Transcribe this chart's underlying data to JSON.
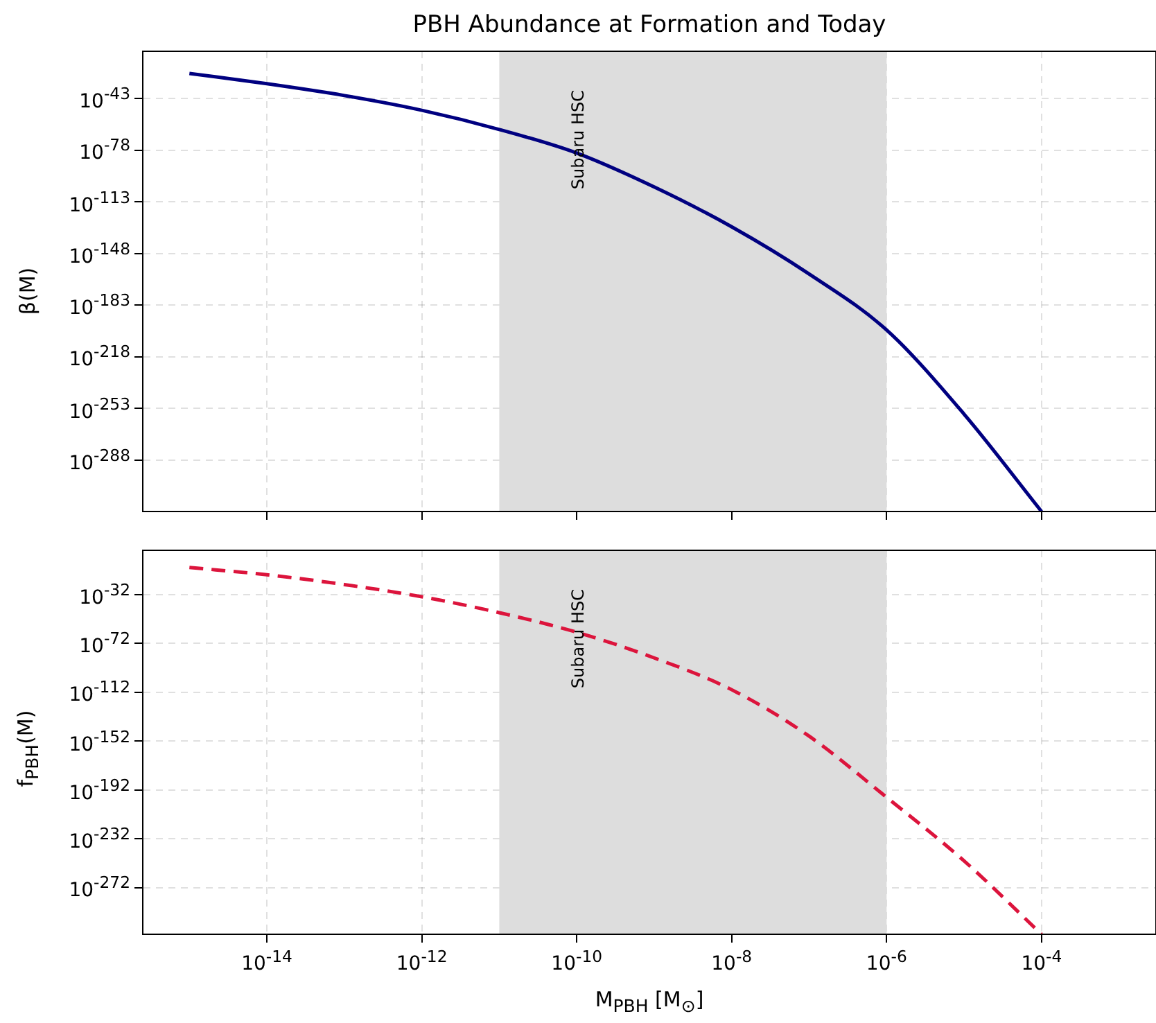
{
  "chart_data": [
    {
      "type": "line",
      "title": "PBH Abundance at Formation and Today",
      "ylabel": "β(M)",
      "log": "xy",
      "grid": true,
      "legend": false,
      "tick_labels": "y",
      "marker": "none",
      "x": [
        1e-15,
        1e-14,
        1e-13,
        1e-12,
        1e-11,
        1e-10,
        1e-09,
        1e-08,
        1e-07,
        1e-06,
        1e-05,
        0.0001
      ],
      "series": [
        {
          "color": "#000080",
          "line_style": "solid",
          "values": [
            1e-26,
            1e-33,
            1e-41,
            1e-51,
            1e-64,
            1e-80,
            1e-103,
            1e-130,
            1e-162,
            1e-200,
            1e-257,
            1e-323
          ]
        }
      ],
      "xlim": [
        2.5e-16,
        0.003
      ],
      "ylim": [
        1e-323,
        1e-11
      ],
      "xticks": [
        {
          "value": 1e-14,
          "label": null
        },
        {
          "value": 1e-12,
          "label": null
        },
        {
          "value": 1e-10,
          "label": null
        },
        {
          "value": 1e-08,
          "label": null
        },
        {
          "value": 1e-06,
          "label": null
        },
        {
          "value": 0.0001,
          "label": null
        }
      ],
      "yticks": [
        {
          "value": 1e-43,
          "label": "10$^{-43}$"
        },
        {
          "value": 1e-78,
          "label": "10$^{-78}$"
        },
        {
          "value": 1e-113,
          "label": "10$^{-113}$"
        },
        {
          "value": 1e-148,
          "label": "10$^{-148}$"
        },
        {
          "value": 1e-183,
          "label": "10$^{-183}$"
        },
        {
          "value": 1e-218,
          "label": "10$^{-218}$"
        },
        {
          "value": 1e-253,
          "label": "10$^{-253}$"
        },
        {
          "value": 1e-288,
          "label": "10$^{-288}$"
        }
      ],
      "bands": [
        {
          "axis": "x",
          "from": 1e-11,
          "to": 1e-06,
          "label": "Subaru HSC",
          "color": "#dddddd"
        }
      ]
    },
    {
      "type": "line",
      "xlabel": "M$_{PBH}$ [M$_{⊙}$]",
      "ylabel": "f$_{PBH}$(M)",
      "log": "xy",
      "grid": true,
      "legend": false,
      "marker": "none",
      "x": [
        1e-15,
        1e-14,
        1e-13,
        1e-12,
        1e-11,
        1e-10,
        1e-09,
        1e-08,
        1e-07,
        1e-06,
        1e-05,
        0.0001
      ],
      "series": [
        {
          "color": "#dc143c",
          "line_style": "dashed",
          "values": [
            1e-10,
            1e-16,
            1e-24,
            1e-34,
            1e-47,
            1e-63,
            1e-84,
            1e-110,
            1e-148,
            1e-198,
            1e-250,
            1e-310
          ]
        }
      ],
      "xlim": [
        2.5e-16,
        0.003
      ],
      "ylim": [
        1e-310,
        10000.0
      ],
      "xticks": [
        {
          "value": 1e-14,
          "label": "10$^{-14}$"
        },
        {
          "value": 1e-12,
          "label": "10$^{-12}$"
        },
        {
          "value": 1e-10,
          "label": "10$^{-10}$"
        },
        {
          "value": 1e-08,
          "label": "10$^{-8}$"
        },
        {
          "value": 1e-06,
          "label": "10$^{-6}$"
        },
        {
          "value": 0.0001,
          "label": "10$^{-4}$"
        }
      ],
      "yticks": [
        {
          "value": 1e-32,
          "label": "10$^{-32}$"
        },
        {
          "value": 1e-72,
          "label": "10$^{-72}$"
        },
        {
          "value": 1e-112,
          "label": "10$^{-112}$"
        },
        {
          "value": 1e-152,
          "label": "10$^{-152}$"
        },
        {
          "value": 1e-192,
          "label": "10$^{-192}$"
        },
        {
          "value": 1e-232,
          "label": "10$^{-232}$"
        },
        {
          "value": 1e-272,
          "label": "10$^{-272}$"
        }
      ],
      "bands": [
        {
          "axis": "x",
          "from": 1e-11,
          "to": 1e-06,
          "label": "Subaru HSC",
          "color": "#dddddd"
        }
      ]
    }
  ]
}
